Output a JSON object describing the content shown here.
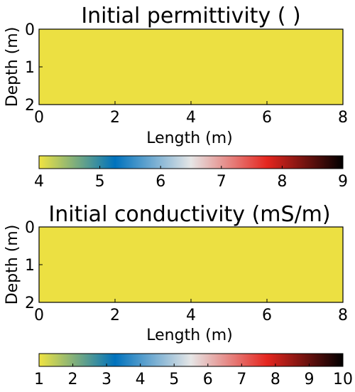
{
  "chart_data": [
    {
      "type": "heatmap",
      "title": "Initial permittivity ( )",
      "xlabel": "Length (m)",
      "ylabel": "Depth (m)",
      "xlim": [
        0,
        8
      ],
      "ylim": [
        0,
        2
      ],
      "x_ticks": [
        "0",
        "2",
        "4",
        "6",
        "8"
      ],
      "y_ticks": [
        "0",
        "1",
        "2"
      ],
      "y_inverted": true,
      "field_value": 4,
      "fill_color": "#ECE042",
      "colorbar": {
        "min": 4,
        "max": 9,
        "ticks": [
          "4",
          "5",
          "6",
          "7",
          "8",
          "9"
        ]
      }
    },
    {
      "type": "heatmap",
      "title": "Initial conductivity (mS/m)",
      "xlabel": "Length (m)",
      "ylabel": "Depth (m)",
      "xlim": [
        0,
        8
      ],
      "ylim": [
        0,
        2
      ],
      "x_ticks": [
        "0",
        "2",
        "4",
        "6",
        "8"
      ],
      "y_ticks": [
        "0",
        "1",
        "2"
      ],
      "y_inverted": true,
      "field_value": 1,
      "fill_color": "#ECE042",
      "colorbar": {
        "min": 1,
        "max": 10,
        "ticks": [
          "1",
          "2",
          "3",
          "4",
          "5",
          "6",
          "7",
          "8",
          "9",
          "10"
        ]
      }
    }
  ],
  "colormap": [
    "#F0E442",
    "#0072BD",
    "#E6E6E6",
    "#E5261F",
    "#000000"
  ]
}
